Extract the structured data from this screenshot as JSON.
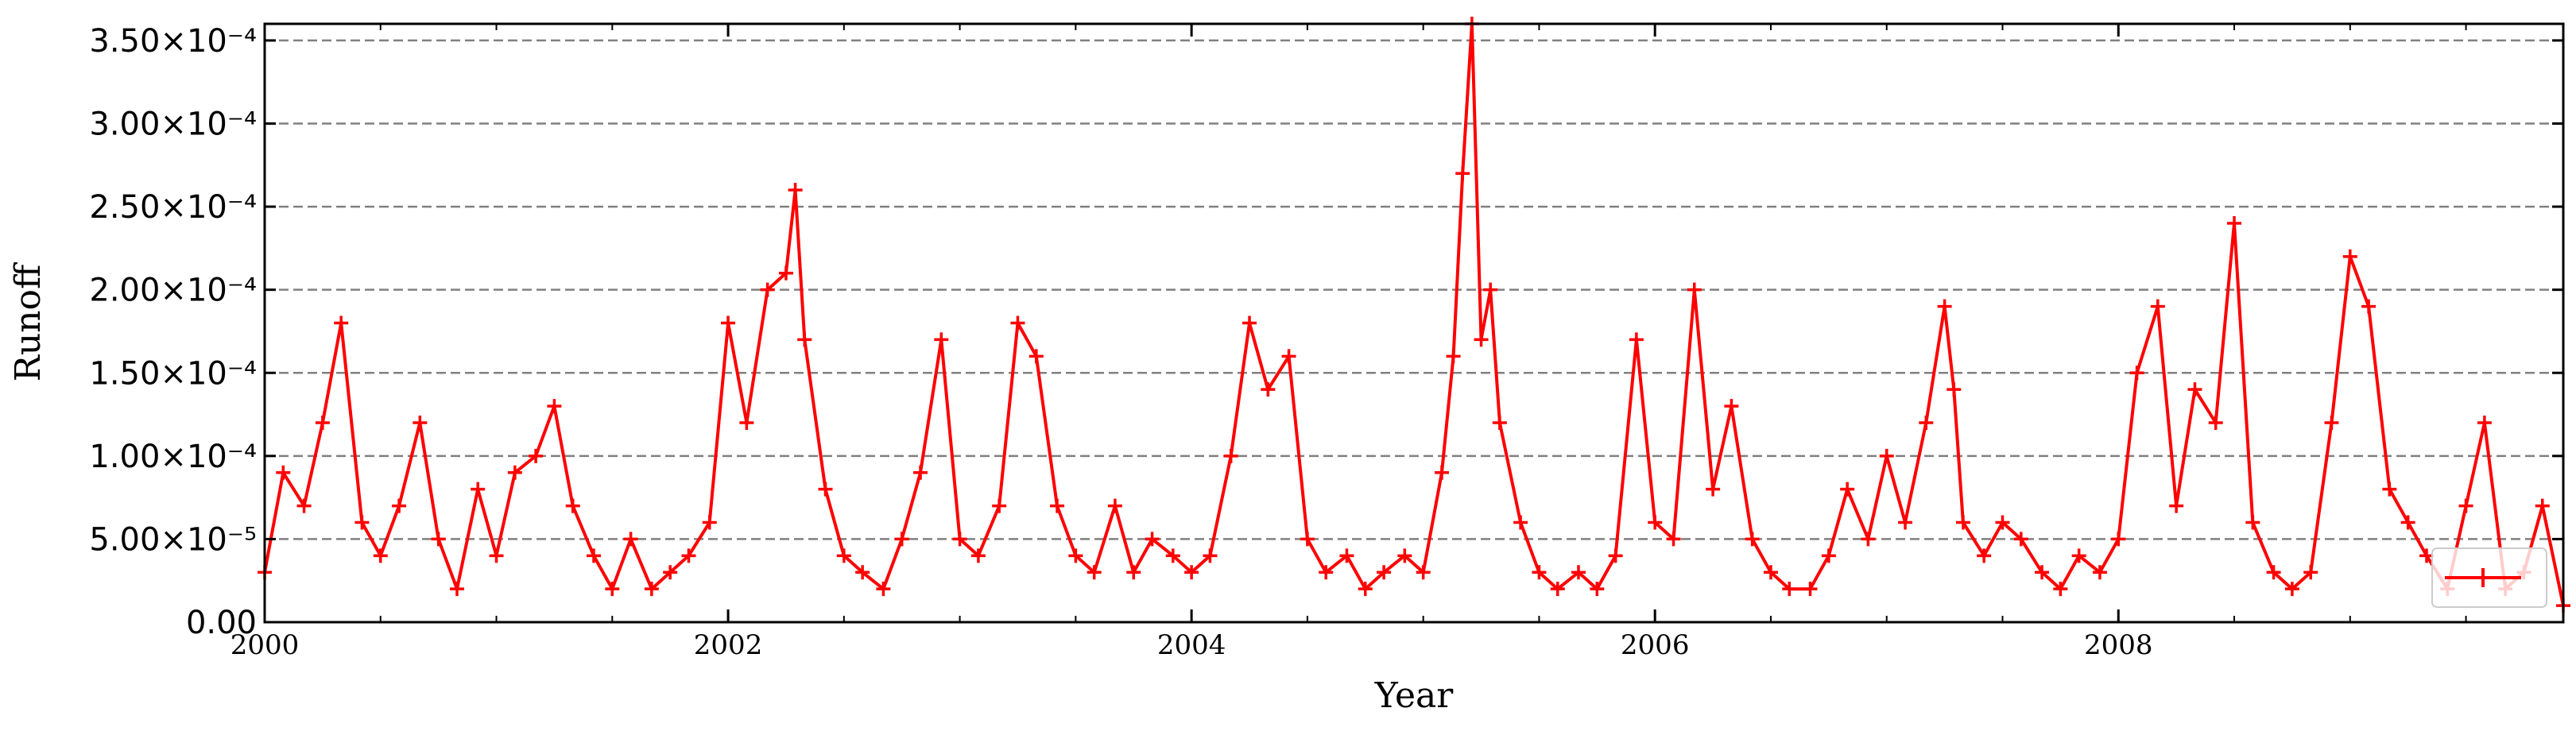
{
  "chart_data": {
    "type": "line",
    "title": "",
    "xlabel": "Year",
    "ylabel": "Runoff",
    "xlim": [
      2000.0,
      2009.92
    ],
    "ylim": [
      0,
      0.00036
    ],
    "x_ticks": [
      {
        "value": 2000,
        "label": "2000"
      },
      {
        "value": 2002,
        "label": "2002"
      },
      {
        "value": 2004,
        "label": "2004"
      },
      {
        "value": 2006,
        "label": "2006"
      },
      {
        "value": 2008,
        "label": "2008"
      }
    ],
    "y_ticks": [
      {
        "value": 0,
        "label": "0.00"
      },
      {
        "value": 5e-05,
        "label": "5.00×10⁻⁵"
      },
      {
        "value": 0.0001,
        "label": "1.00×10⁻⁴"
      },
      {
        "value": 0.00015,
        "label": "1.50×10⁻⁴"
      },
      {
        "value": 0.0002,
        "label": "2.00×10⁻⁴"
      },
      {
        "value": 0.00025,
        "label": "2.50×10⁻⁴"
      },
      {
        "value": 0.0003,
        "label": "3.00×10⁻⁴"
      },
      {
        "value": 0.00035,
        "label": "3.50×10⁻⁴"
      }
    ],
    "grid": {
      "y": true,
      "x": false,
      "style": "dashed"
    },
    "legend": {
      "position": "bottom-right",
      "entries": [
        {
          "label": "",
          "color": "#ff0000",
          "marker": "+"
        }
      ]
    },
    "series": [
      {
        "color": "#ff0000",
        "marker": "+",
        "x": [
          2000.0,
          2000.08,
          2000.17,
          2000.25,
          2000.33,
          2000.42,
          2000.5,
          2000.58,
          2000.67,
          2000.75,
          2000.83,
          2000.92,
          2001.0,
          2001.08,
          2001.17,
          2001.25,
          2001.33,
          2001.42,
          2001.5,
          2001.58,
          2001.67,
          2001.75,
          2001.83,
          2001.92,
          2002.0,
          2002.08,
          2002.17,
          2002.25,
          2002.29,
          2002.33,
          2002.42,
          2002.5,
          2002.58,
          2002.67,
          2002.75,
          2002.83,
          2002.92,
          2003.0,
          2003.08,
          2003.17,
          2003.25,
          2003.33,
          2003.42,
          2003.5,
          2003.58,
          2003.67,
          2003.75,
          2003.83,
          2003.92,
          2004.0,
          2004.08,
          2004.17,
          2004.25,
          2004.33,
          2004.42,
          2004.5,
          2004.58,
          2004.67,
          2004.75,
          2004.83,
          2004.92,
          2005.0,
          2005.08,
          2005.13,
          2005.17,
          2005.21,
          2005.25,
          2005.29,
          2005.33,
          2005.42,
          2005.5,
          2005.58,
          2005.67,
          2005.75,
          2005.83,
          2005.92,
          2006.0,
          2006.08,
          2006.17,
          2006.25,
          2006.33,
          2006.42,
          2006.5,
          2006.58,
          2006.67,
          2006.75,
          2006.83,
          2006.92,
          2007.0,
          2007.08,
          2007.17,
          2007.25,
          2007.29,
          2007.33,
          2007.42,
          2007.5,
          2007.58,
          2007.67,
          2007.75,
          2007.83,
          2007.92,
          2008.0,
          2008.08,
          2008.17,
          2008.25,
          2008.33,
          2008.42,
          2008.5,
          2008.58,
          2008.67,
          2008.75,
          2008.83,
          2008.92,
          2009.0,
          2009.08,
          2009.17,
          2009.25,
          2009.33,
          2009.42,
          2009.5,
          2009.58,
          2009.67,
          2009.75,
          2009.83,
          2009.92
        ],
        "y": [
          3e-05,
          9e-05,
          7e-05,
          0.00012,
          0.00018,
          6e-05,
          4e-05,
          7e-05,
          0.00012,
          5e-05,
          2e-05,
          8e-05,
          4e-05,
          9e-05,
          0.0001,
          0.00013,
          7e-05,
          4e-05,
          2e-05,
          5e-05,
          2e-05,
          3e-05,
          4e-05,
          6e-05,
          0.00018,
          0.00012,
          0.0002,
          0.00021,
          0.00026,
          0.00017,
          8e-05,
          4e-05,
          3e-05,
          2e-05,
          5e-05,
          9e-05,
          0.00017,
          5e-05,
          4e-05,
          7e-05,
          0.00018,
          0.00016,
          7e-05,
          4e-05,
          3e-05,
          7e-05,
          3e-05,
          5e-05,
          4e-05,
          3e-05,
          4e-05,
          0.0001,
          0.00018,
          0.00014,
          0.00016,
          5e-05,
          3e-05,
          4e-05,
          2e-05,
          3e-05,
          4e-05,
          3e-05,
          9e-05,
          0.00016,
          0.00027,
          0.00036,
          0.00017,
          0.0002,
          0.00012,
          6e-05,
          3e-05,
          2e-05,
          3e-05,
          2e-05,
          4e-05,
          0.00017,
          6e-05,
          5e-05,
          0.0002,
          8e-05,
          0.00013,
          5e-05,
          3e-05,
          2e-05,
          2e-05,
          4e-05,
          8e-05,
          5e-05,
          0.0001,
          6e-05,
          0.00012,
          0.00019,
          0.00014,
          6e-05,
          4e-05,
          6e-05,
          5e-05,
          3e-05,
          2e-05,
          4e-05,
          3e-05,
          5e-05,
          0.00015,
          0.00019,
          7e-05,
          0.00014,
          0.00012,
          0.00024,
          6e-05,
          3e-05,
          2e-05,
          3e-05,
          0.00012,
          0.00022,
          0.00019,
          8e-05,
          6e-05,
          4e-05,
          2e-05,
          7e-05,
          0.00012,
          2e-05,
          3e-05,
          7e-05,
          1e-05
        ]
      }
    ]
  }
}
